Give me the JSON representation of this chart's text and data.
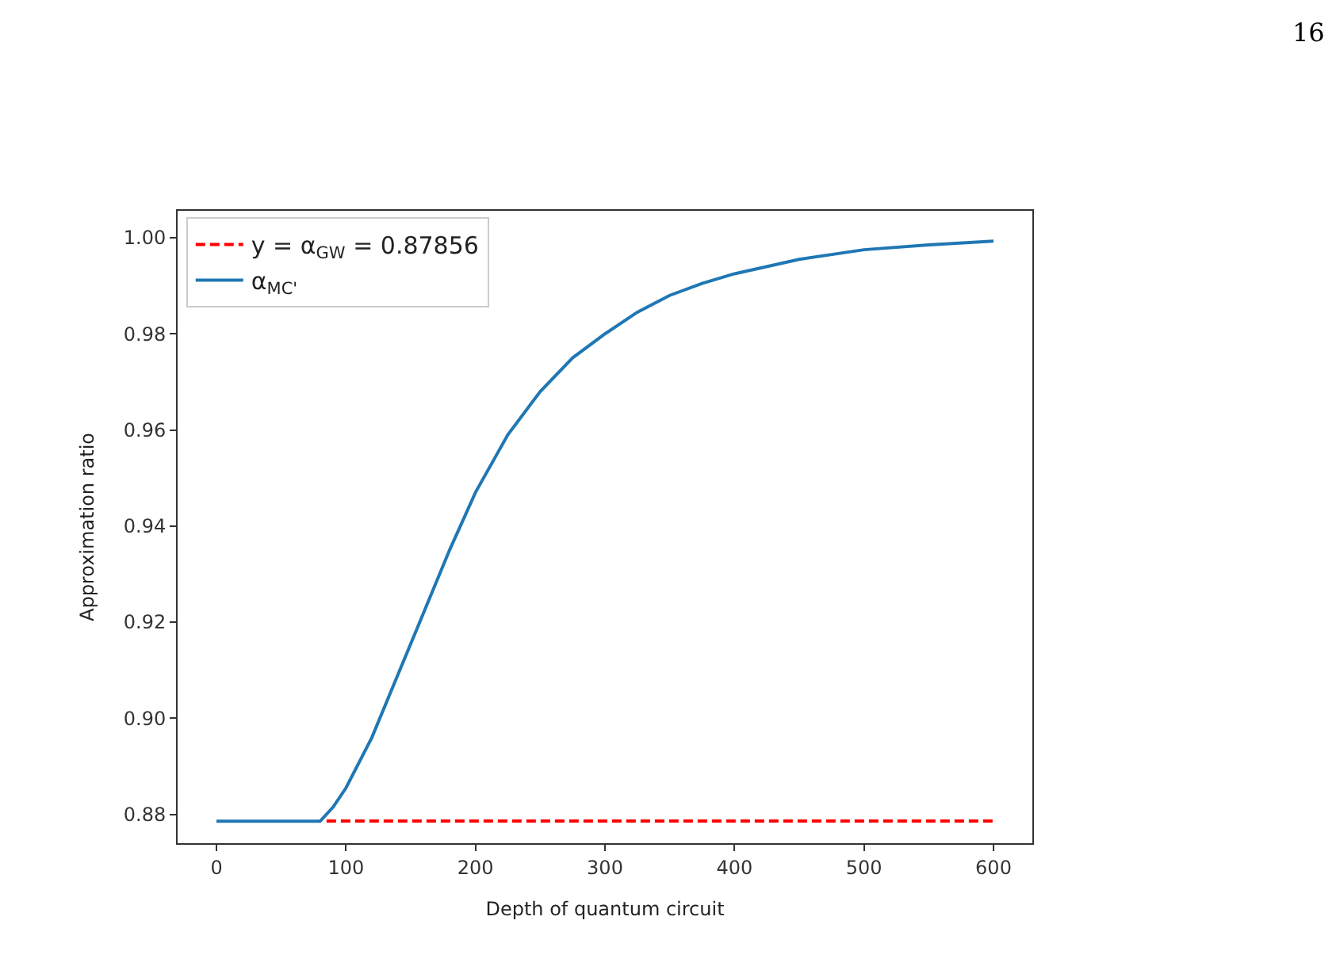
{
  "chart_data": {
    "type": "line",
    "xlabel": "Depth of quantum circuit",
    "ylabel": "Approximation ratio",
    "annotations": [
      "16"
    ],
    "series": [
      {
        "name": "y = α$_{GW}$ = 0.87856",
        "color": "#ff0000",
        "line_style": "dashed",
        "x": [
          85,
          600
        ],
        "values": [
          0.8786,
          0.8786
        ]
      },
      {
        "name": "α$_{MC'}$",
        "color": "#1f77b4",
        "line_style": "solid",
        "x": [
          0,
          40,
          80,
          90,
          100,
          120,
          140,
          160,
          180,
          200,
          225,
          250,
          275,
          300,
          325,
          350,
          375,
          400,
          450,
          500,
          550,
          600
        ],
        "values": [
          0.87856,
          0.87856,
          0.87856,
          0.8815,
          0.8855,
          0.896,
          0.909,
          0.922,
          0.935,
          0.947,
          0.959,
          0.968,
          0.975,
          0.98,
          0.9845,
          0.988,
          0.9905,
          0.9925,
          0.9955,
          0.9975,
          0.9985,
          0.9993
        ]
      }
    ],
    "xlim": [
      -30,
      630
    ],
    "ylim": [
      0.874,
      1.0056
    ],
    "xticks": [
      0,
      100,
      200,
      300,
      400,
      500,
      600
    ],
    "yticks": [
      {
        "value": 0.88,
        "label": "0.88"
      },
      {
        "value": 0.9,
        "label": "0.90"
      },
      {
        "value": 0.92,
        "label": "0.92"
      },
      {
        "value": 0.94,
        "label": "0.94"
      },
      {
        "value": 0.96,
        "label": "0.96"
      },
      {
        "value": 0.98,
        "label": "0.98"
      },
      {
        "value": 1.0,
        "label": "1.00"
      }
    ],
    "legend": "top left",
    "marker": "none"
  }
}
